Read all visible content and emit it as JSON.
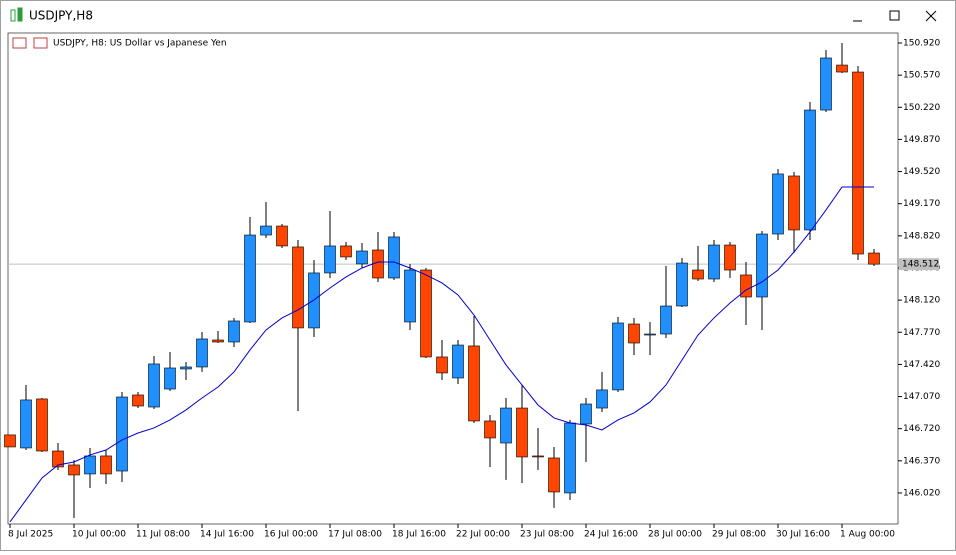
{
  "window_title": "USDJPY,H8",
  "chart_data": {
    "type": "candlestick",
    "title": "USDJPY, H8:  US Dollar vs Japanese Yen",
    "categories": [
      "8 Jul 2025",
      null,
      null,
      null,
      "10 Jul 00:00",
      null,
      null,
      null,
      "11 Jul 08:00",
      null,
      null,
      null,
      "14 Jul 16:00",
      null,
      null,
      null,
      "16 Jul 00:00",
      null,
      null,
      null,
      "17 Jul 08:00",
      null,
      null,
      null,
      "18 Jul 16:00",
      null,
      null,
      null,
      "22 Jul 00:00",
      null,
      null,
      null,
      "23 Jul 08:00",
      null,
      null,
      null,
      "24 Jul 16:00",
      null,
      null,
      null,
      "28 Jul 00:00",
      null,
      null,
      null,
      "29 Jul 08:00",
      null,
      null,
      null,
      "30 Jul 16:00",
      null,
      null,
      null,
      "1 Aug 00:00",
      null,
      null
    ],
    "open": [
      146.652,
      146.51,
      147.044,
      146.477,
      146.325,
      146.227,
      146.423,
      146.259,
      147.087,
      146.956,
      147.152,
      147.37,
      147.392,
      147.686,
      147.664,
      147.882,
      148.829,
      148.927,
      148.699,
      147.817,
      148.416,
      148.71,
      148.514,
      148.666,
      148.361,
      147.882,
      148.448,
      147.501,
      147.272,
      147.621,
      146.804,
      146.564,
      146.945,
      146.423,
      146.401,
      146.02,
      146.771,
      146.945,
      147.142,
      147.86,
      147.74,
      147.751,
      148.056,
      148.448,
      148.35,
      148.72,
      148.394,
      148.154,
      148.84,
      149.472,
      148.884,
      150.19,
      150.68,
      150.604,
      148.633
    ],
    "high": [
      146.652,
      147.196,
      147.054,
      146.564,
      146.379,
      146.51,
      146.488,
      147.12,
      147.12,
      147.512,
      147.555,
      147.446,
      147.773,
      147.784,
      147.926,
      149.025,
      149.189,
      148.949,
      148.775,
      148.557,
      149.091,
      148.753,
      148.742,
      148.862,
      148.862,
      148.514,
      148.47,
      147.686,
      147.686,
      147.947,
      146.869,
      147.054,
      147.196,
      146.728,
      146.521,
      146.815,
      147.054,
      147.338,
      147.936,
      147.926,
      147.882,
      148.492,
      148.579,
      148.71,
      148.775,
      148.753,
      148.535,
      148.873,
      149.548,
      149.515,
      150.278,
      150.844,
      150.92,
      150.67,
      148.677
    ],
    "low": [
      146.521,
      146.488,
      146.466,
      146.27,
      145.748,
      146.074,
      146.118,
      146.14,
      146.945,
      146.935,
      147.131,
      147.25,
      147.338,
      147.653,
      147.61,
      147.871,
      148.797,
      148.688,
      146.913,
      147.719,
      148.361,
      148.557,
      148.47,
      148.318,
      148.339,
      147.795,
      147.49,
      147.25,
      147.207,
      146.782,
      146.303,
      146.162,
      146.129,
      146.27,
      145.857,
      145.944,
      146.357,
      146.902,
      147.12,
      147.523,
      147.523,
      147.708,
      148.045,
      148.328,
      148.318,
      148.361,
      147.849,
      147.795,
      148.775,
      148.633,
      148.775,
      150.169,
      150.593,
      148.557,
      148.492
    ],
    "close": [
      146.521,
      147.033,
      146.477,
      146.303,
      146.216,
      146.423,
      146.227,
      147.065,
      146.967,
      147.425,
      147.381,
      147.392,
      147.697,
      147.664,
      147.893,
      148.829,
      148.927,
      148.71,
      147.817,
      148.416,
      148.71,
      148.59,
      148.655,
      148.361,
      148.808,
      148.448,
      147.501,
      147.327,
      147.631,
      146.804,
      146.619,
      146.945,
      146.412,
      146.412,
      146.031,
      146.782,
      146.989,
      147.142,
      147.871,
      147.653,
      147.751,
      148.056,
      148.524,
      148.35,
      148.72,
      148.448,
      148.154,
      148.84,
      149.494,
      148.884,
      150.19,
      150.757,
      150.604,
      148.622,
      148.512
    ],
    "up_color": "#1e90ff",
    "down_color": "#ff4500",
    "overlays": [
      {
        "color": "#0000cd",
        "values": [
          145.704,
          145.944,
          146.183,
          146.325,
          146.357,
          146.434,
          146.488,
          146.597,
          146.673,
          146.728,
          146.815,
          146.924,
          147.054,
          147.174,
          147.338,
          147.577,
          147.795,
          147.926,
          148.013,
          148.122,
          148.252,
          148.372,
          148.47,
          148.535,
          148.535,
          148.47,
          148.394,
          148.307,
          148.176,
          147.958,
          147.686,
          147.414,
          147.196,
          146.978,
          146.837,
          146.782,
          146.76,
          146.706,
          146.815,
          146.891,
          147.011,
          147.196,
          147.468,
          147.74,
          147.926,
          148.089,
          148.23,
          148.318,
          148.448,
          148.644,
          148.862,
          149.102,
          149.352,
          149.352,
          149.352
        ]
      }
    ],
    "current_price": 148.512,
    "ylim": [
      145.682,
      151.029
    ],
    "yticks": [
      {
        "value": 146.02,
        "label": "146.020"
      },
      {
        "value": 146.37,
        "label": "146.370"
      },
      {
        "value": 146.72,
        "label": "146.720"
      },
      {
        "value": 147.07,
        "label": "147.070"
      },
      {
        "value": 147.42,
        "label": "147.420"
      },
      {
        "value": 147.77,
        "label": "147.770"
      },
      {
        "value": 148.12,
        "label": "148.120"
      },
      {
        "value": 148.47,
        "label": "148.470"
      },
      {
        "value": 148.82,
        "label": "148.820"
      },
      {
        "value": 149.17,
        "label": "149.170"
      },
      {
        "value": 149.52,
        "label": "149.520"
      },
      {
        "value": 149.87,
        "label": "149.870"
      },
      {
        "value": 150.22,
        "label": "150.220"
      },
      {
        "value": 150.57,
        "label": "150.570"
      },
      {
        "value": 150.92,
        "label": "150.920"
      }
    ]
  }
}
